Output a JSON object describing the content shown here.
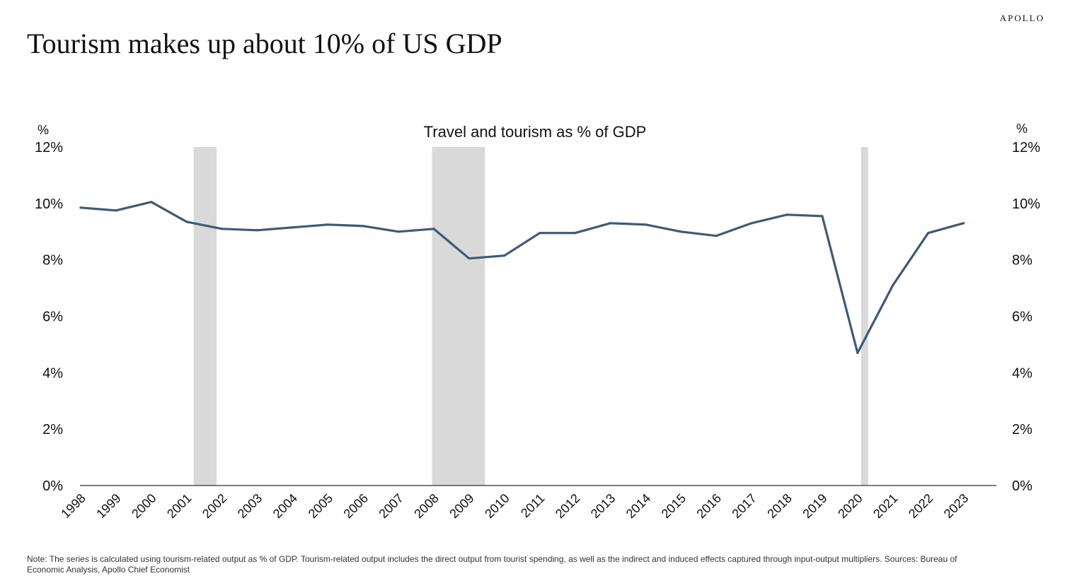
{
  "brand": "APOLLO",
  "headline": "Tourism makes up about 10% of US GDP",
  "note": "Note: The series is calculated using tourism-related output as % of GDP. Tourism-related output includes the direct output from tourist spending, as well as the indirect and induced effects captured through input-output multipliers. Sources: Bureau of Economic Analysis, Apollo Chief Economist",
  "chart_data": {
    "type": "line",
    "title": "Travel and tourism as % of GDP",
    "left_unit": "%",
    "right_unit": "%",
    "ylim": [
      0,
      12
    ],
    "y_ticks": [
      "0%",
      "2%",
      "4%",
      "6%",
      "8%",
      "10%",
      "12%"
    ],
    "x": [
      "1998",
      "1999",
      "2000",
      "2001",
      "2002",
      "2003",
      "2004",
      "2005",
      "2006",
      "2007",
      "2008",
      "2009",
      "2010",
      "2011",
      "2012",
      "2013",
      "2014",
      "2015",
      "2016",
      "2017",
      "2018",
      "2019",
      "2020",
      "2021",
      "2022",
      "2023"
    ],
    "series": [
      {
        "values": [
          9.85,
          9.75,
          10.05,
          9.35,
          9.1,
          9.05,
          9.15,
          9.25,
          9.2,
          9.0,
          9.1,
          8.05,
          8.15,
          8.95,
          8.95,
          9.3,
          9.25,
          9.0,
          8.85,
          9.3,
          9.6,
          9.55,
          4.7,
          7.1,
          8.95,
          9.3
        ],
        "color": "#3d5a78"
      }
    ],
    "recessions": [
      {
        "start": 2001.2,
        "end": 2001.85
      },
      {
        "start": 2007.95,
        "end": 2009.45
      },
      {
        "start": 2020.1,
        "end": 2020.3
      }
    ],
    "shading_color": "#d9d9d9",
    "grid": false,
    "legend": "none"
  }
}
